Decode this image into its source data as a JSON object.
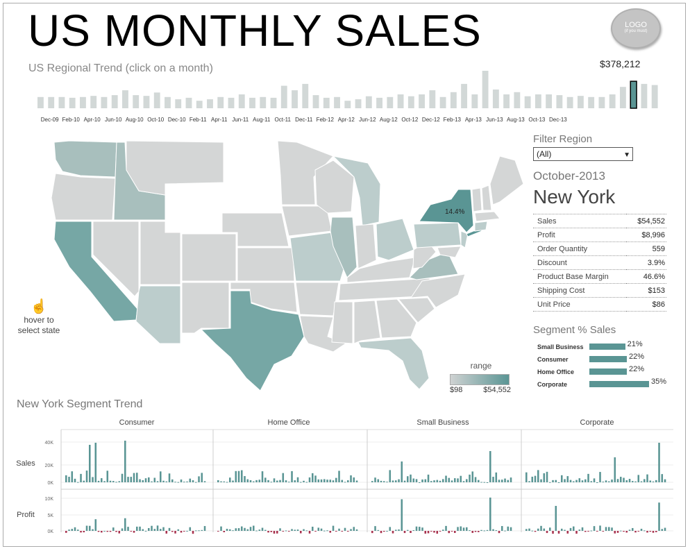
{
  "title": "US MONTHLY SALES",
  "logo": {
    "line1": "LOGO",
    "line2": "(if you must)"
  },
  "trend": {
    "title": "US Regional Trend (click on a month)",
    "selected_value": "$378,212",
    "selected_month": "Oct-13",
    "tick_labels": [
      "Dec-09",
      "Feb-10",
      "Apr-10",
      "Jun-10",
      "Aug-10",
      "Oct-10",
      "Dec-10",
      "Feb-11",
      "Apr-11",
      "Jun-11",
      "Aug-11",
      "Oct-11",
      "Dec-11",
      "Feb-12",
      "Apr-12",
      "Jun-12",
      "Aug-12",
      "Oct-12",
      "Dec-12",
      "Feb-13",
      "Apr-13",
      "Jun-13",
      "Aug-13",
      "Oct-13",
      "Dec-13"
    ],
    "bar_heights_relative": [
      0.3,
      0.3,
      0.3,
      0.28,
      0.3,
      0.33,
      0.3,
      0.35,
      0.48,
      0.35,
      0.33,
      0.42,
      0.3,
      0.24,
      0.28,
      0.2,
      0.24,
      0.3,
      0.28,
      0.37,
      0.28,
      0.3,
      0.28,
      0.6,
      0.48,
      0.65,
      0.35,
      0.28,
      0.3,
      0.2,
      0.24,
      0.32,
      0.28,
      0.3,
      0.37,
      0.32,
      0.37,
      0.48,
      0.3,
      0.43,
      0.65,
      0.37,
      1.0,
      0.5,
      0.37,
      0.43,
      0.32,
      0.37,
      0.37,
      0.35,
      0.3,
      0.33,
      0.3,
      0.3,
      0.37,
      0.57,
      0.72,
      0.65,
      0.62
    ],
    "selected_index": 56,
    "bar_color": "#d2d8d7",
    "selected_color": "#5a9594"
  },
  "map": {
    "hover_hint": "hover to select state",
    "selected_state": "New York",
    "selected_pct": "14.4%",
    "range_label": "range",
    "range_min": "$98",
    "range_max": "$54,552",
    "low_color": "#cfd2d2",
    "high_color": "#5a9594"
  },
  "filter": {
    "label": "Filter Region",
    "value": "(All)"
  },
  "detail": {
    "month": "October-2013",
    "state": "New York",
    "kpis": [
      {
        "label": "Sales",
        "value": "$54,552"
      },
      {
        "label": "Profit",
        "value": "$8,996"
      },
      {
        "label": "Order Quantity",
        "value": "559"
      },
      {
        "label": "Discount",
        "value": "3.9%"
      },
      {
        "label": "Product Base Margin",
        "value": "46.6%"
      },
      {
        "label": "Shipping Cost",
        "value": "$153"
      },
      {
        "label": "Unit Price",
        "value": "$86"
      }
    ]
  },
  "segments": {
    "title": "Segment % Sales",
    "rows": [
      {
        "name": "Small Business",
        "pct": "21%",
        "value": 21
      },
      {
        "name": "Consumer",
        "pct": "22%",
        "value": 22
      },
      {
        "name": "Home Office",
        "pct": "22%",
        "value": 22
      },
      {
        "name": "Corporate",
        "pct": "35%",
        "value": 35
      }
    ]
  },
  "segment_trend": {
    "title": "New York Segment Trend",
    "panels": [
      "Consumer",
      "Home Office",
      "Small Business",
      "Corporate"
    ],
    "rows": [
      "Sales",
      "Profit"
    ],
    "sales_ticks": [
      "40K",
      "20K",
      "0K"
    ],
    "profit_ticks": [
      "10K",
      "5K",
      "0K"
    ],
    "positive_color": "#5a9594",
    "negative_color": "#a8324e"
  }
}
